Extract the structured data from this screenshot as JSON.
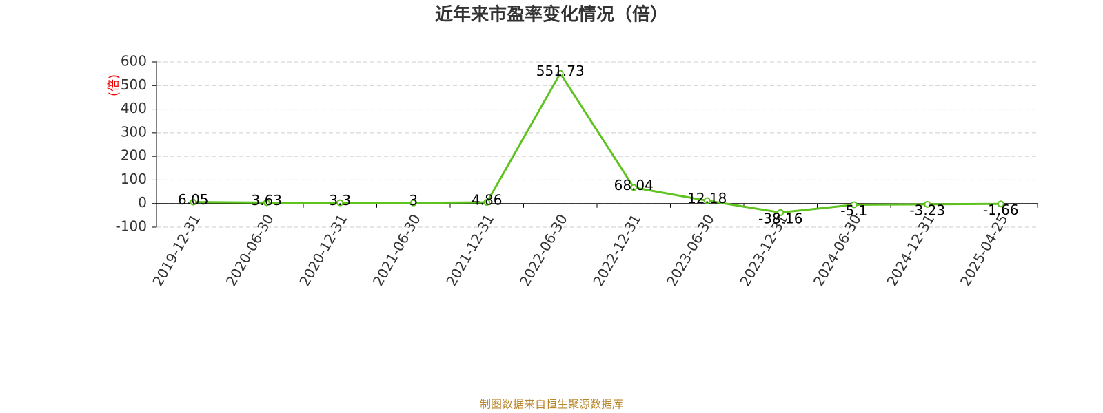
{
  "chart_data": {
    "type": "line",
    "title": "近年来市盈率变化情况（倍）",
    "y_label": "(倍)",
    "categories": [
      "2019-12-31",
      "2020-06-30",
      "2020-12-31",
      "2021-06-30",
      "2021-12-31",
      "2022-06-30",
      "2022-12-31",
      "2023-06-30",
      "2023-12-31",
      "2024-06-30",
      "2024-12-31",
      "2025-04-25"
    ],
    "values": [
      6.05,
      3.63,
      3.3,
      3,
      4.86,
      551.73,
      68.04,
      12.18,
      -38.16,
      -5.1,
      -3.23,
      -1.66
    ],
    "color": "#5ec21f",
    "ylim": [
      -100,
      600
    ],
    "yticks": [
      -100,
      0,
      100,
      200,
      300,
      400,
      500,
      600
    ],
    "grid": true,
    "source": "制图数据来自恒生聚源数据库"
  }
}
